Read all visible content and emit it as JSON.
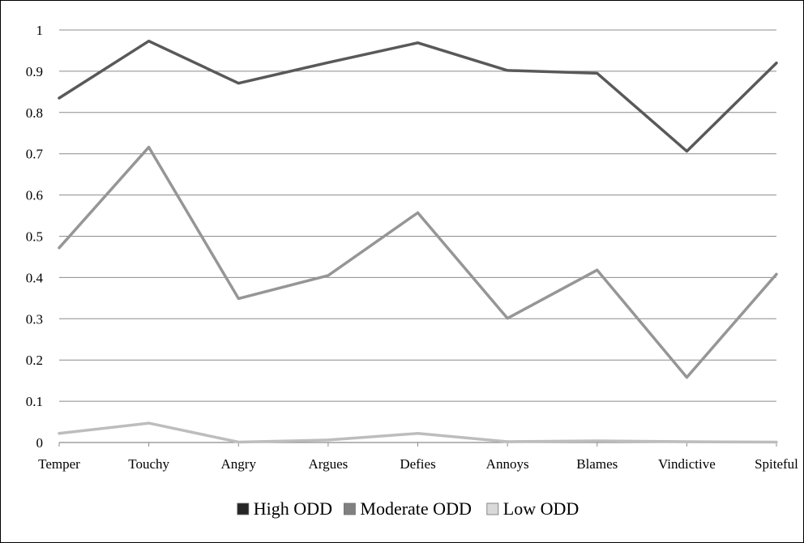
{
  "chart_data": {
    "type": "line",
    "title": "",
    "xlabel": "",
    "ylabel": "",
    "categories": [
      "Temper",
      "Touchy",
      "Angry",
      "Argues",
      "Defies",
      "Annoys",
      "Blames",
      "Vindictive",
      "Spiteful"
    ],
    "ylim": [
      0,
      1
    ],
    "yticks": [
      "0",
      "0.1",
      "0.2",
      "0.3",
      "0.4",
      "0.5",
      "0.6",
      "0.7",
      "0.8",
      "0.9",
      "1"
    ],
    "grid": true,
    "legend_position": "bottom",
    "series": [
      {
        "name": "High ODD",
        "color": "#595959",
        "values": [
          0.835,
          0.973,
          0.871,
          0.921,
          0.969,
          0.902,
          0.895,
          0.706,
          0.92
        ]
      },
      {
        "name": "Moderate ODD",
        "color": "#969696",
        "values": [
          0.472,
          0.716,
          0.349,
          0.405,
          0.557,
          0.301,
          0.418,
          0.158,
          0.408
        ]
      },
      {
        "name": "Low ODD",
        "color": "#bdbdbd",
        "values": [
          0.022,
          0.047,
          0.001,
          0.006,
          0.022,
          0.002,
          0.004,
          0.002,
          0.001
        ]
      }
    ]
  }
}
